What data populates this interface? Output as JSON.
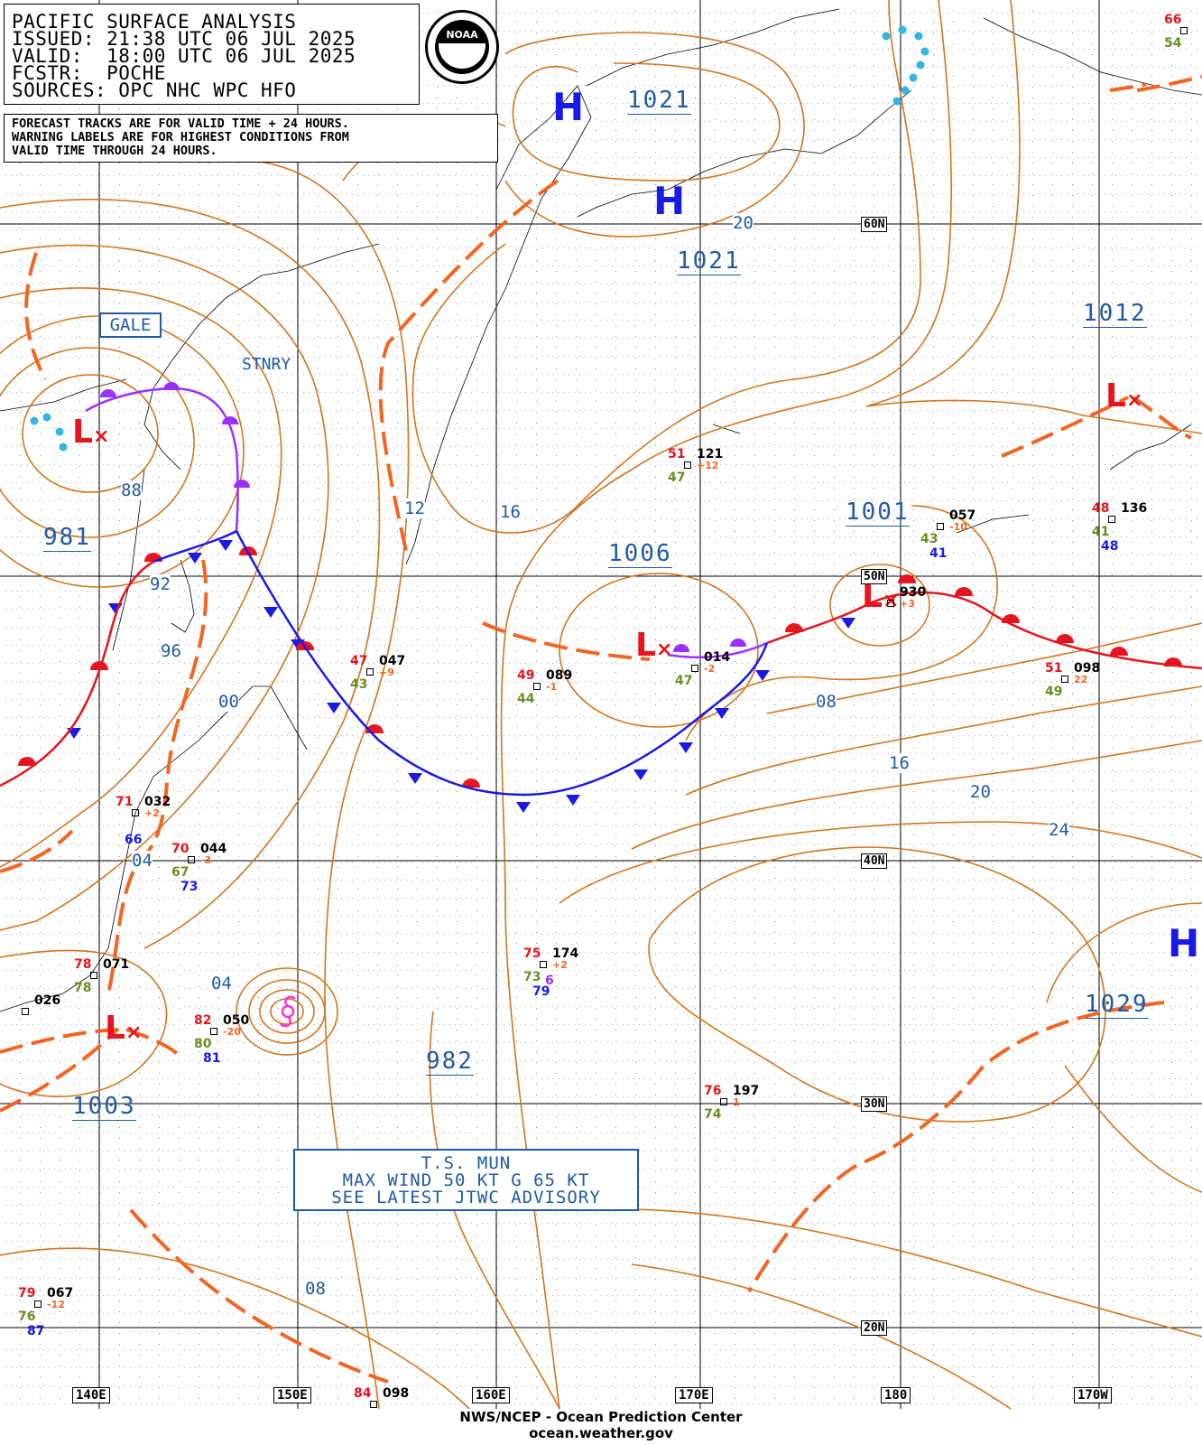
{
  "header": {
    "line1": "PACIFIC SURFACE ANALYSIS",
    "line2": "ISSUED: 21:38 UTC 06 JUL 2025",
    "line3": "VALID:  18:00 UTC 06 JUL 2025",
    "line4": "FCSTR:  POCHE",
    "line5": "SOURCES: OPC NHC WPC HFO"
  },
  "note": {
    "line1": "FORECAST TRACKS ARE FOR VALID TIME + 24 HOURS.",
    "line2": "WARNING LABELS ARE FOR HIGHEST CONDITIONS FROM",
    "line3": "VALID TIME THROUGH 24 HOURS."
  },
  "logo_text": "NOAA",
  "labels": {
    "gale": "GALE",
    "stnry": "STNRY",
    "storm_name": "T.S. MUN",
    "storm_wind": "MAX WIND 50 KT G 65 KT",
    "storm_advisory": "SEE LATEST JTWC ADVISORY"
  },
  "footer": {
    "line1": "NWS/NCEP - Ocean Prediction Center",
    "line2": "ocean.weather.gov"
  },
  "lat_labels": [
    "60N",
    "50N",
    "40N",
    "30N",
    "20N"
  ],
  "lon_labels": [
    "140E",
    "150E",
    "160E",
    "170E",
    "180",
    "170W"
  ],
  "pressure_centers": [
    {
      "type": "H",
      "value": "1021"
    },
    {
      "type": "H",
      "value": "1021"
    },
    {
      "type": "H",
      "value": "1029"
    },
    {
      "type": "L",
      "value": "981"
    },
    {
      "type": "L",
      "value": "1006"
    },
    {
      "type": "L",
      "value": "1001"
    },
    {
      "type": "L",
      "value": "1012"
    },
    {
      "type": "L",
      "value": "1003"
    },
    {
      "type": "L",
      "value": "982"
    }
  ],
  "isobar_labels": [
    "20",
    "16",
    "12",
    "88",
    "92",
    "96",
    "00",
    "08",
    "16",
    "20",
    "24",
    "04",
    "04",
    "08"
  ],
  "stations": [
    {
      "temp": "51",
      "pres": "121",
      "tend": "+12",
      "dew": "47"
    },
    {
      "temp": "48",
      "pres": "136",
      "dew": "41",
      "sst": "48"
    },
    {
      "temp": "",
      "pres": "057",
      "tend": "-10",
      "dew": "43",
      "sst": "41"
    },
    {
      "temp": "",
      "pres": "930",
      "tend": "+3"
    },
    {
      "temp": "47",
      "pres": "047",
      "tend": "+9",
      "dew": "43"
    },
    {
      "temp": "49",
      "pres": "089",
      "tend": "-1",
      "dew": "44"
    },
    {
      "temp": "",
      "pres": "014",
      "tend": "-2",
      "dew": "47"
    },
    {
      "temp": "51",
      "pres": "098",
      "tend": "22",
      "dew": "49"
    },
    {
      "temp": "71",
      "pres": "032",
      "tend": "+2",
      "sst": "66"
    },
    {
      "temp": "70",
      "pres": "044",
      "tend": "-3",
      "dew": "67",
      "sst": "73"
    },
    {
      "temp": "78",
      "pres": "071",
      "dew": "78"
    },
    {
      "temp": "",
      "pres": "026"
    },
    {
      "temp": "82",
      "pres": "050",
      "tend": "-20",
      "dew": "80",
      "sst": "81"
    },
    {
      "temp": "75",
      "pres": "174",
      "tend": "+2",
      "dew": "73",
      "sst": "79",
      "extra": "6"
    },
    {
      "temp": "76",
      "pres": "197",
      "tend": "1",
      "dew": "74"
    },
    {
      "temp": "79",
      "pres": "067",
      "tend": "-12",
      "dew": "76",
      "sst": "87"
    },
    {
      "temp": "84",
      "pres": "098"
    },
    {
      "temp": "66",
      "pres": "",
      "dew": "54"
    }
  ],
  "colors": {
    "isobar": "#d2751e",
    "trough": "#f26522",
    "cold_front": "#1a1ae6",
    "warm_front": "#e6141e",
    "occluded": "#9b30ff",
    "high": "#1a1ae6",
    "low": "#e6141e",
    "label": "#1f5aa6",
    "ice": "#33b5e5",
    "cyclone": "#ff33cc"
  }
}
